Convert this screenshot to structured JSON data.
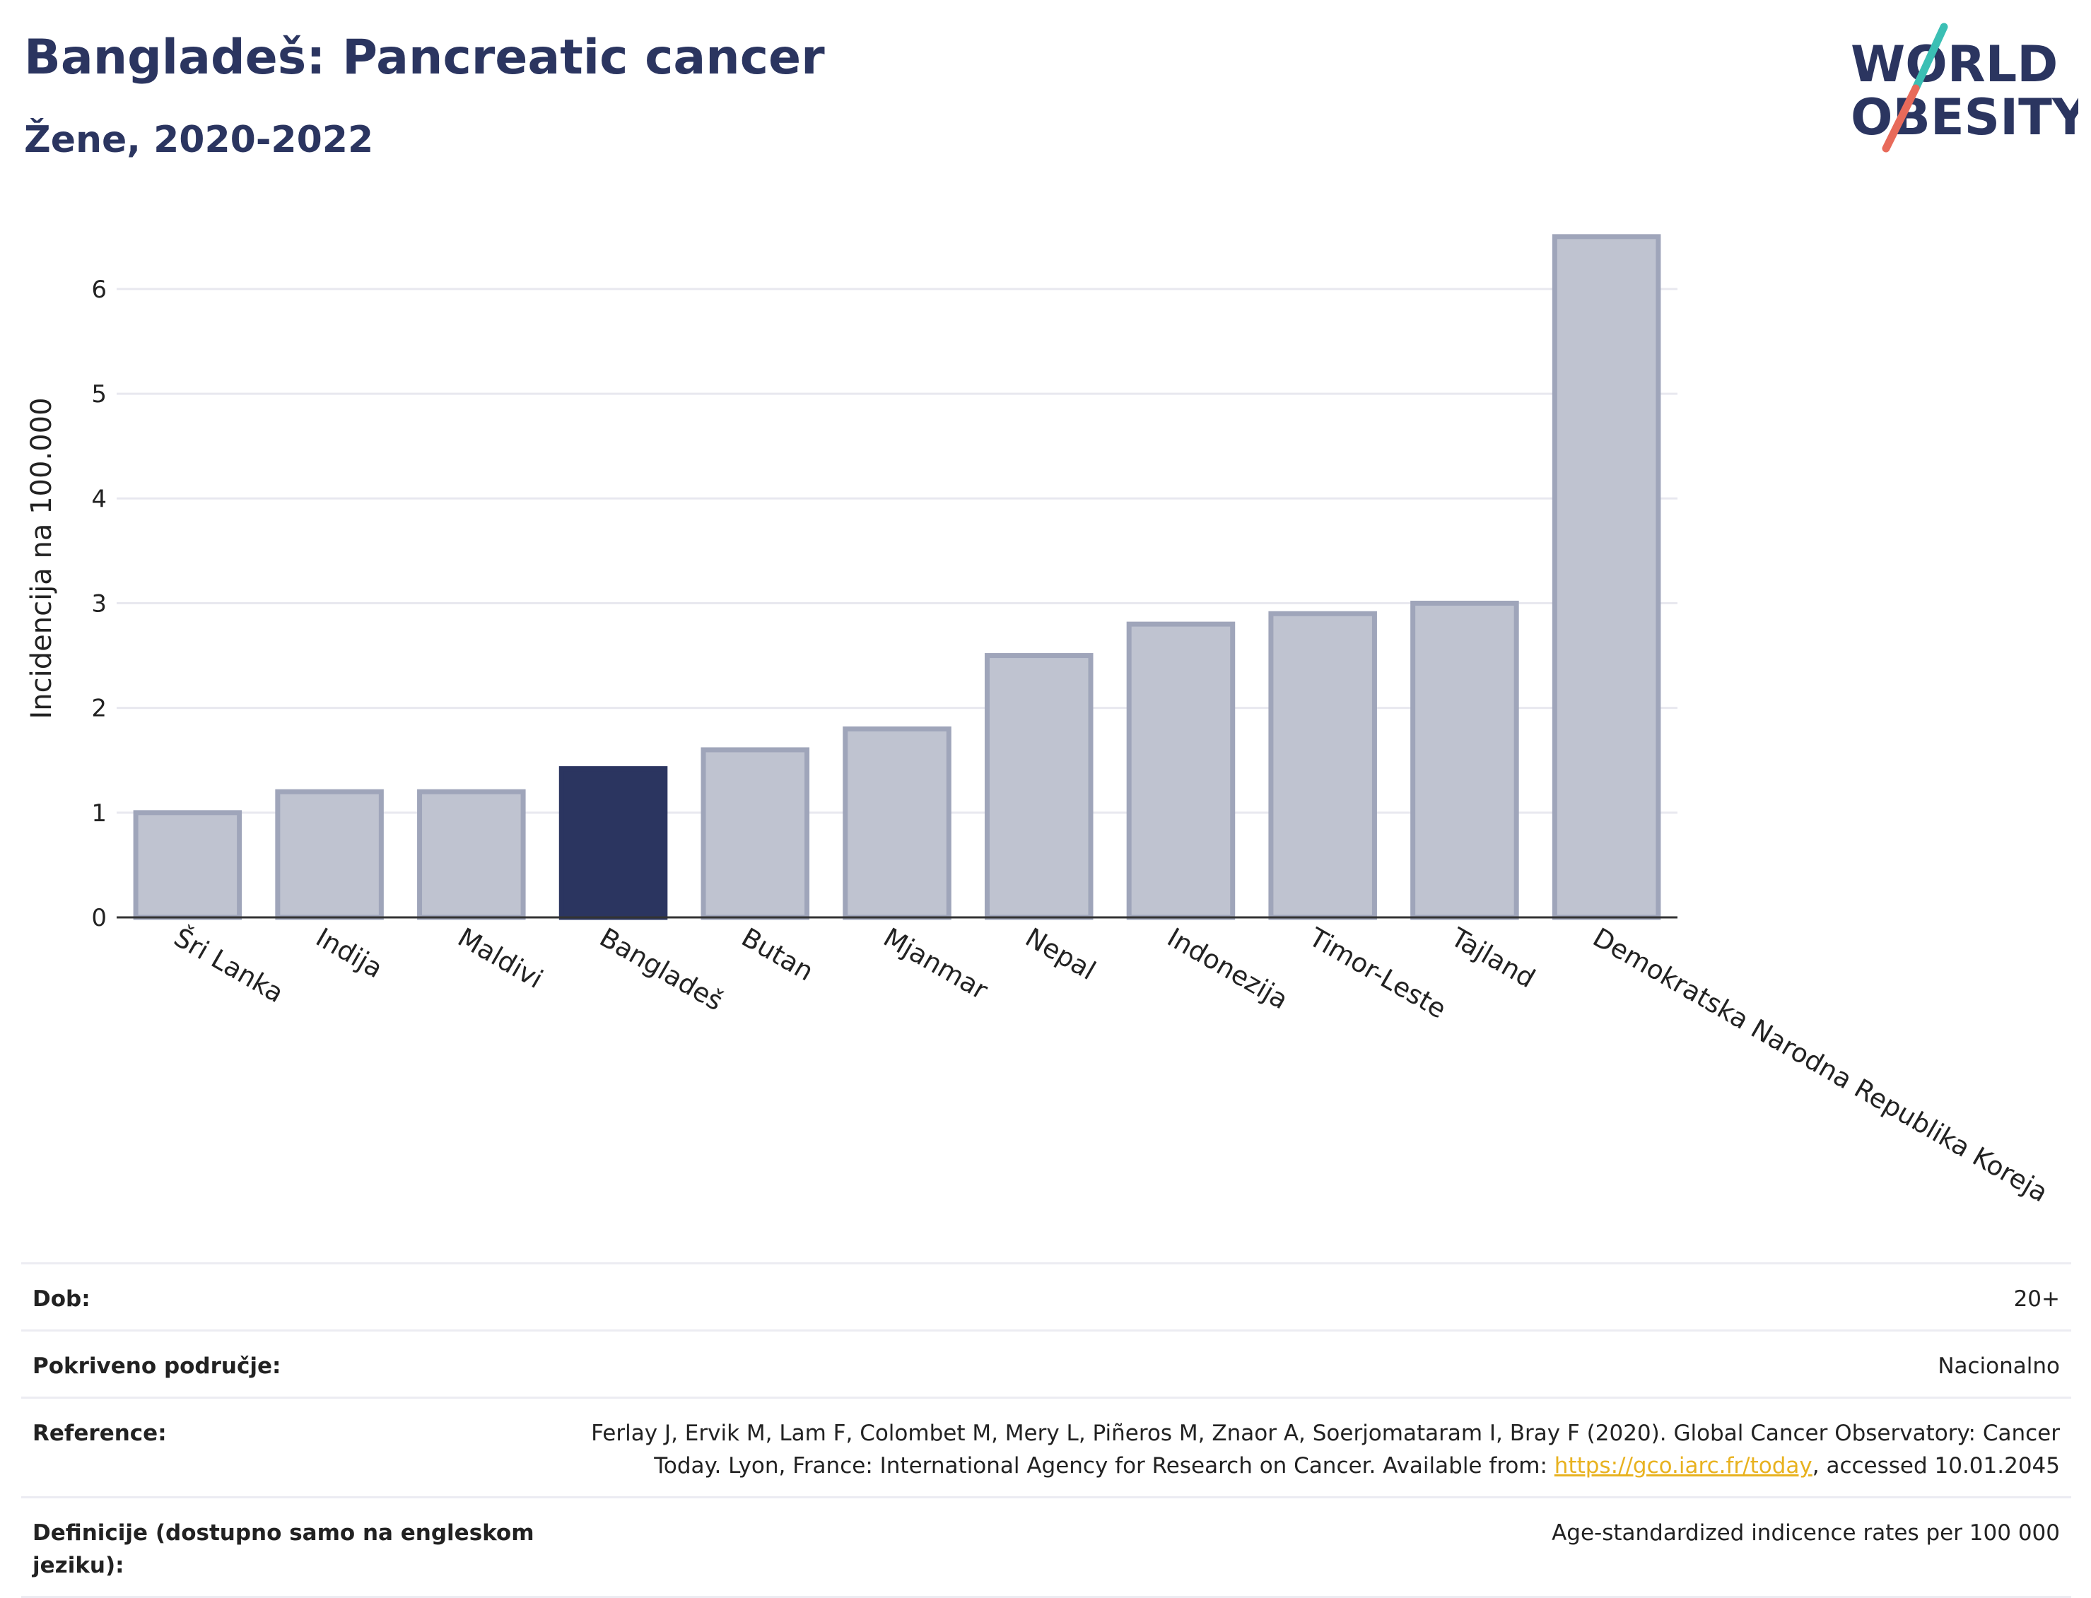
{
  "header": {
    "title": "Bangladeš: Pancreatic cancer",
    "subtitle": "Žene, 2020-2022"
  },
  "logo": {
    "line1": "WORLD",
    "line2": "OBESITY",
    "slash_colors": [
      "#3bbfb4",
      "#e86a5a"
    ],
    "text_color": "#2b3560"
  },
  "chart_data": {
    "type": "bar",
    "categories": [
      "Šri Lanka",
      "Indija",
      "Maldivi",
      "Bangladeš",
      "Butan",
      "Mjanmar",
      "Nepal",
      "Indonezija",
      "Timor-Leste",
      "Tajland",
      "Demokratska Narodna Republika Koreja"
    ],
    "values": [
      1.0,
      1.2,
      1.2,
      1.42,
      1.6,
      1.8,
      2.5,
      2.8,
      2.9,
      3.0,
      6.5
    ],
    "highlight": "Bangladeš",
    "ylabel": "Incidencija na 100.000",
    "ylim": [
      0,
      6.6
    ],
    "yticks": [
      0,
      1,
      2,
      3,
      4,
      5,
      6
    ],
    "grid": true,
    "colors": {
      "bar": "#bfc3d0",
      "bar_border": "#9fa5ba",
      "highlight": "#2b3560",
      "grid": "#e8e8ef",
      "axis": "#333333"
    }
  },
  "info": {
    "rows": [
      {
        "key": "Dob:",
        "value": "20+"
      },
      {
        "key": "Pokriveno područje:",
        "value": "Nacionalno"
      },
      {
        "key": "Reference:",
        "value_pre": "Ferlay J, Ervik M, Lam F, Colombet M, Mery L, Piñeros M, Znaor A, Soerjomataram I, Bray F (2020). Global Cancer Observatory: Cancer Today. Lyon, France: International Agency for Research on Cancer. Available from: ",
        "link": "https://gco.iarc.fr/today",
        "value_post": ", accessed 10.01.2045"
      },
      {
        "key": "Definicije (dostupno samo na engleskom jeziku):",
        "value": "Age-standardized indicence rates per 100 000"
      }
    ]
  }
}
